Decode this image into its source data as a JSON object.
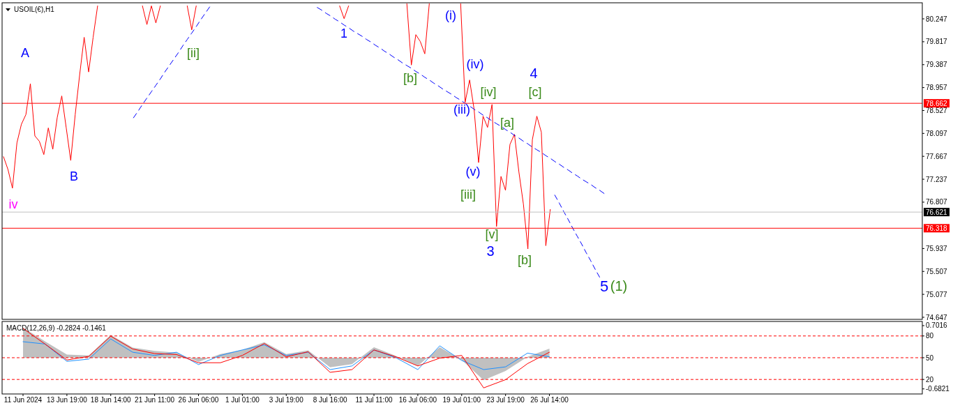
{
  "chart_data": [
    {
      "type": "line",
      "title": "USOIL(€),H1",
      "tick_labels": "y",
      "categories": [
        null,
        null,
        null,
        null,
        null,
        null,
        null,
        null,
        null,
        null,
        null,
        null,
        null,
        null,
        null,
        null,
        null,
        null,
        null,
        null,
        null,
        null,
        null,
        null,
        null,
        null,
        null,
        null,
        null,
        null,
        null,
        null,
        null,
        null,
        null,
        null,
        null,
        null,
        null,
        null,
        null,
        null,
        null,
        null,
        null,
        null,
        null,
        null,
        null,
        null,
        null,
        null,
        null,
        null,
        null,
        null,
        null,
        null,
        null,
        null,
        null,
        null,
        null,
        null,
        null,
        null,
        null,
        null,
        null,
        null,
        null,
        null,
        null,
        null,
        null,
        null,
        null,
        null,
        null,
        null,
        null,
        null,
        null,
        null,
        null,
        null,
        null,
        null,
        null,
        null,
        null,
        null,
        null,
        null,
        null,
        null,
        null,
        null,
        null,
        null,
        null,
        null,
        null,
        null,
        null,
        null,
        null,
        null,
        null,
        null,
        null,
        null,
        null,
        null,
        null,
        null,
        null,
        null,
        null,
        null,
        null,
        null,
        null,
        null,
        null,
        null,
        null,
        null,
        null,
        null,
        null,
        null,
        null,
        null,
        null,
        null,
        null,
        null,
        null,
        null,
        null,
        null,
        null,
        null,
        null,
        null,
        null,
        null,
        null,
        null,
        null,
        null,
        null,
        null,
        null,
        null,
        null,
        null,
        null,
        null,
        null,
        null,
        null,
        null,
        null,
        null,
        null,
        null,
        null,
        null,
        null,
        null,
        null,
        null,
        null,
        null,
        null,
        null,
        null,
        null,
        null,
        null,
        null,
        null,
        null,
        null,
        null,
        null,
        null,
        null,
        null,
        null,
        null,
        null,
        null,
        null,
        null,
        null,
        null,
        null,
        null,
        null,
        null,
        null,
        null
      ],
      "ylim": [
        74.608,
        80.548
      ],
      "yticks": [
        80.247,
        79.817,
        79.387,
        78.957,
        78.527,
        78.097,
        77.667,
        77.237,
        76.807,
        75.937,
        75.507,
        75.077,
        74.647
      ],
      "series": [
        {
          "color": "#ff0000",
          "values": [
            77.66,
            77.42,
            77.07,
            77.92,
            78.27,
            78.45,
            79.03,
            78.05,
            77.95,
            77.7,
            78.2,
            77.8,
            78.4,
            78.8,
            78.2,
            77.59,
            78.45,
            79.2,
            79.9,
            79.25,
            79.9,
            80.49,
            null,
            null,
            null,
            null,
            null,
            null,
            null,
            null,
            null,
            80.49,
            80.14,
            80.49,
            80.17,
            80.49,
            null,
            null,
            null,
            null,
            null,
            80.49,
            80.04,
            80.49,
            null,
            null,
            null,
            null,
            null,
            null,
            null,
            null,
            null,
            null,
            null,
            null,
            null,
            null,
            null,
            null,
            null,
            null,
            null,
            null,
            null,
            null,
            null,
            null,
            null,
            null,
            null,
            null,
            null,
            null,
            null,
            80.49,
            80.25,
            80.49,
            null,
            null,
            null,
            null,
            null,
            null,
            null,
            null,
            null,
            null,
            null,
            null,
            80.53,
            79.38,
            79.95,
            79.82,
            79.59,
            80.53,
            null,
            null,
            null,
            null,
            null,
            null,
            80.53,
            78.68,
            79.1,
            78.55,
            77.55,
            78.42,
            78.21,
            78.64,
            76.35,
            77.29,
            77.03,
            77.89,
            78.08,
            77.37,
            76.77,
            75.93,
            77.98,
            78.42,
            78.12,
            75.99,
            76.67,
            null,
            null,
            null,
            null,
            null,
            null,
            null,
            null,
            null,
            null,
            null,
            null,
            null,
            null,
            null,
            null,
            null,
            null,
            null,
            null,
            null,
            null,
            null,
            null,
            null,
            null,
            null,
            null,
            null,
            null,
            null,
            null,
            null,
            null,
            null,
            null,
            null,
            null,
            null,
            null,
            null,
            null,
            null,
            null,
            null,
            null,
            null,
            null,
            null,
            null,
            null,
            null,
            null,
            null,
            null,
            null,
            null,
            null,
            null,
            null,
            null,
            null,
            null,
            null,
            null,
            null,
            null,
            null,
            null,
            null,
            null,
            null,
            null,
            null,
            null,
            null,
            null,
            null,
            null,
            null,
            null,
            null
          ]
        },
        {
          "color": "#0000ff",
          "line_style": "dashed",
          "values": [
            null,
            null,
            null,
            null,
            null,
            null,
            null,
            null,
            null,
            null,
            null,
            null,
            null,
            null,
            null,
            null,
            null,
            null,
            null,
            null,
            null,
            null,
            null,
            null,
            null,
            null,
            null,
            null,
            null,
            78.39,
            78.51,
            78.64,
            78.76,
            78.88,
            79.0,
            79.12,
            79.25,
            79.37,
            79.49,
            79.61,
            79.74,
            79.86,
            79.98,
            80.1,
            80.23,
            80.35,
            80.47,
            null,
            null,
            null,
            null,
            null,
            null,
            null,
            null,
            null,
            null,
            null,
            null,
            null,
            null,
            null,
            null,
            null,
            null,
            null,
            null,
            null,
            null,
            null,
            null,
            null,
            null,
            null,
            null,
            null,
            null,
            null,
            null,
            null,
            null,
            null,
            null,
            null,
            null,
            null,
            null,
            null,
            null,
            null,
            null,
            null,
            null,
            null,
            null,
            null,
            null,
            null,
            null,
            null,
            null,
            null,
            null,
            null,
            null,
            null,
            null,
            null,
            null,
            null,
            null,
            null,
            null,
            null,
            null,
            null,
            null,
            null,
            null,
            null,
            null,
            null,
            null,
            null,
            null,
            null,
            null,
            null,
            null,
            null,
            null,
            null,
            null,
            null,
            null,
            null,
            null,
            null,
            null,
            null,
            null,
            null,
            null,
            null,
            null,
            null,
            null,
            null,
            null,
            null,
            null,
            null,
            null,
            null,
            null,
            null,
            null,
            null,
            null,
            null,
            null,
            null,
            null,
            null,
            null,
            null,
            null,
            null,
            null,
            null,
            null,
            null,
            null,
            null,
            null,
            null,
            null,
            null,
            null,
            null,
            null,
            null,
            null,
            null,
            null,
            null,
            null,
            null,
            null,
            null,
            null,
            null,
            null,
            null,
            null,
            null,
            null,
            null,
            null,
            null,
            null,
            null,
            null,
            null,
            null
          ]
        },
        {
          "color": "#0000ff",
          "line_style": "dashed",
          "values": [
            null,
            null,
            null,
            null,
            null,
            null,
            null,
            null,
            null,
            null,
            null,
            null,
            null,
            null,
            null,
            null,
            null,
            null,
            null,
            null,
            null,
            null,
            null,
            null,
            null,
            null,
            null,
            null,
            null,
            null,
            null,
            null,
            null,
            null,
            null,
            null,
            null,
            null,
            null,
            null,
            null,
            null,
            null,
            null,
            null,
            null,
            null,
            null,
            null,
            null,
            null,
            null,
            null,
            null,
            null,
            null,
            null,
            null,
            null,
            null,
            null,
            null,
            null,
            null,
            null,
            null,
            null,
            null,
            null,
            null,
            80.46,
            80.41,
            80.35,
            80.3,
            80.24,
            80.19,
            80.13,
            80.08,
            80.02,
            79.97,
            79.92,
            79.86,
            79.81,
            79.75,
            79.7,
            79.64,
            79.59,
            79.53,
            79.48,
            79.42,
            79.37,
            79.32,
            79.26,
            79.21,
            79.15,
            79.1,
            79.04,
            78.99,
            78.93,
            78.88,
            78.83,
            78.77,
            78.72,
            78.66,
            78.61,
            78.55,
            78.5,
            78.44,
            78.39,
            78.33,
            78.28,
            78.23,
            78.17,
            78.12,
            78.06,
            78.01,
            77.95,
            77.9,
            77.84,
            77.79,
            77.74,
            77.68,
            77.63,
            77.57,
            77.52,
            77.46,
            77.41,
            77.35,
            77.3,
            77.24,
            77.19,
            77.14,
            77.08,
            77.03,
            76.97,
            null,
            null,
            null,
            null,
            null,
            null,
            null,
            null,
            null,
            null,
            null,
            null,
            null,
            null,
            null,
            null,
            null,
            null,
            null,
            null,
            null,
            null,
            null,
            null,
            null,
            null,
            null,
            null,
            null,
            null,
            null,
            null,
            null,
            null,
            null,
            null,
            null,
            null,
            null,
            null,
            null,
            null,
            null,
            null,
            null,
            null,
            null,
            null,
            null,
            null,
            null,
            null,
            null,
            null,
            null,
            null,
            null,
            null,
            null,
            null,
            null,
            null,
            null,
            null,
            null,
            null,
            null,
            null,
            null,
            null
          ]
        },
        {
          "color": "#0000ff",
          "line_style": "dashed",
          "values": [
            null,
            null,
            null,
            null,
            null,
            null,
            null,
            null,
            null,
            null,
            null,
            null,
            null,
            null,
            null,
            null,
            null,
            null,
            null,
            null,
            null,
            null,
            null,
            null,
            null,
            null,
            null,
            null,
            null,
            null,
            null,
            null,
            null,
            null,
            null,
            null,
            null,
            null,
            null,
            null,
            null,
            null,
            null,
            null,
            null,
            null,
            null,
            null,
            null,
            null,
            null,
            null,
            null,
            null,
            null,
            null,
            null,
            null,
            null,
            null,
            null,
            null,
            null,
            null,
            null,
            null,
            null,
            null,
            null,
            null,
            null,
            null,
            null,
            null,
            null,
            null,
            null,
            null,
            null,
            null,
            null,
            null,
            null,
            null,
            null,
            null,
            null,
            null,
            null,
            null,
            null,
            null,
            null,
            null,
            null,
            null,
            null,
            null,
            null,
            null,
            null,
            null,
            null,
            null,
            null,
            null,
            null,
            null,
            null,
            null,
            null,
            null,
            null,
            null,
            null,
            null,
            null,
            null,
            null,
            null,
            null,
            null,
            null,
            76.94,
            76.79,
            76.63,
            76.48,
            76.32,
            76.17,
            76.02,
            75.86,
            75.71,
            75.55,
            75.4,
            null,
            null,
            null,
            null,
            null,
            null,
            null,
            null,
            null,
            null,
            null,
            null,
            null,
            null,
            null,
            null,
            null,
            null,
            null,
            null,
            null,
            null,
            null,
            null,
            null,
            null,
            null,
            null,
            null,
            null,
            null,
            null,
            null,
            null,
            null,
            null,
            null,
            null,
            null,
            null,
            null,
            null,
            null,
            null,
            null,
            null,
            null,
            null,
            null,
            null,
            null,
            null,
            null,
            null,
            null,
            null,
            null,
            null,
            null,
            null,
            null,
            null,
            null,
            null,
            null,
            null,
            null,
            null,
            null,
            null,
            null
          ]
        }
      ],
      "ref_lines": [
        {
          "axis": "y",
          "value": 78.662,
          "label": "78.662",
          "color": "#ff0000"
        },
        {
          "axis": "y",
          "value": 76.621,
          "label": "76.621",
          "color": "#c0c0c0"
        },
        {
          "axis": "y",
          "value": 76.318,
          "label": "76.318",
          "color": "#ff0000"
        }
      ],
      "annotations": [
        "A",
        "B",
        "iv",
        "[ii]",
        "1",
        "[b]",
        "(i)",
        "(iv)",
        "(iii)",
        "[iv]",
        "4",
        "[c]",
        "[a]",
        "(v)",
        "[iii]",
        "[v]",
        "3",
        "[b]",
        "5",
        "(1)"
      ]
    },
    {
      "type": "line",
      "title": "MACD(12,26,9) -0.2824 -0.1461",
      "categories": [
        "11 Jun 2024",
        null,
        "13 Jun 19:00",
        null,
        "18 Jun 14:00",
        null,
        "21 Jun 11:00",
        null,
        "26 Jun 06:00",
        null,
        "1 Jul 01:00",
        null,
        "3 Jul 19:00",
        null,
        "8 Jul 16:00",
        null,
        "11 Jul 11:00",
        null,
        "16 Jul 06:00",
        null,
        "19 Jul 01:00",
        null,
        "23 Jul 19:00",
        null,
        "26 Jul 14:00",
        null,
        null,
        null,
        null,
        null,
        null,
        null,
        null,
        null,
        null,
        null,
        null,
        null,
        null,
        null,
        null
      ],
      "ylim": [
        -0.793,
        0.793
      ],
      "yticks": [
        0.7016,
        -0.6821
      ],
      "y2lim": [
        0,
        100
      ],
      "y2ticks": [
        80,
        50,
        20
      ],
      "series": [
        {
          "type": "area",
          "color": "#c0c0c0",
          "values": [
            0.66,
            0.36,
            0.07,
            0.05,
            0.5,
            0.22,
            0.15,
            0.11,
            -0.09,
            0.08,
            0.17,
            0.34,
            0.08,
            0.16,
            -0.21,
            -0.14,
            0.23,
            0.04,
            -0.18,
            0.23,
            -0.05,
            -0.49,
            -0.29,
            0.02,
            0.2,
            null,
            null,
            null,
            null,
            null,
            null,
            null,
            null,
            null,
            null,
            null,
            null,
            null,
            null,
            null,
            null
          ]
        },
        {
          "color": "#1e90ff",
          "values": [
            0.35,
            0.3,
            -0.08,
            -0.03,
            0.41,
            0.12,
            0.05,
            0.12,
            -0.15,
            0.05,
            0.17,
            0.28,
            0.05,
            0.12,
            -0.26,
            -0.18,
            0.17,
            0,
            -0.26,
            0.26,
            -0.06,
            -0.26,
            -0.2,
            0.1,
            0.02,
            null,
            null,
            null,
            null,
            null,
            null,
            null,
            null,
            null,
            null,
            null,
            null,
            null,
            null,
            null,
            null
          ]
        },
        {
          "color": "#ff0000",
          "values": [
            0.64,
            0.3,
            -0.05,
            0.03,
            0.47,
            0.19,
            0.09,
            0.07,
            -0.11,
            -0.11,
            0.05,
            0.31,
            0.02,
            0.13,
            -0.32,
            -0.26,
            0.17,
            0.02,
            -0.18,
            -0.01,
            0.05,
            -0.66,
            -0.48,
            -0.13,
            0.12,
            null,
            null,
            null,
            null,
            null,
            null,
            null,
            null,
            null,
            null,
            null,
            null,
            null,
            null,
            null,
            null
          ]
        }
      ],
      "ref_lines": [
        {
          "axis": "y2",
          "value": 80,
          "color": "#ff0000",
          "line_style": "dashed"
        },
        {
          "axis": "y2",
          "value": 50,
          "color": "#ff0000",
          "line_style": "dashed"
        },
        {
          "axis": "y2",
          "value": 20,
          "color": "#ff0000",
          "line_style": "dashed"
        }
      ]
    }
  ]
}
